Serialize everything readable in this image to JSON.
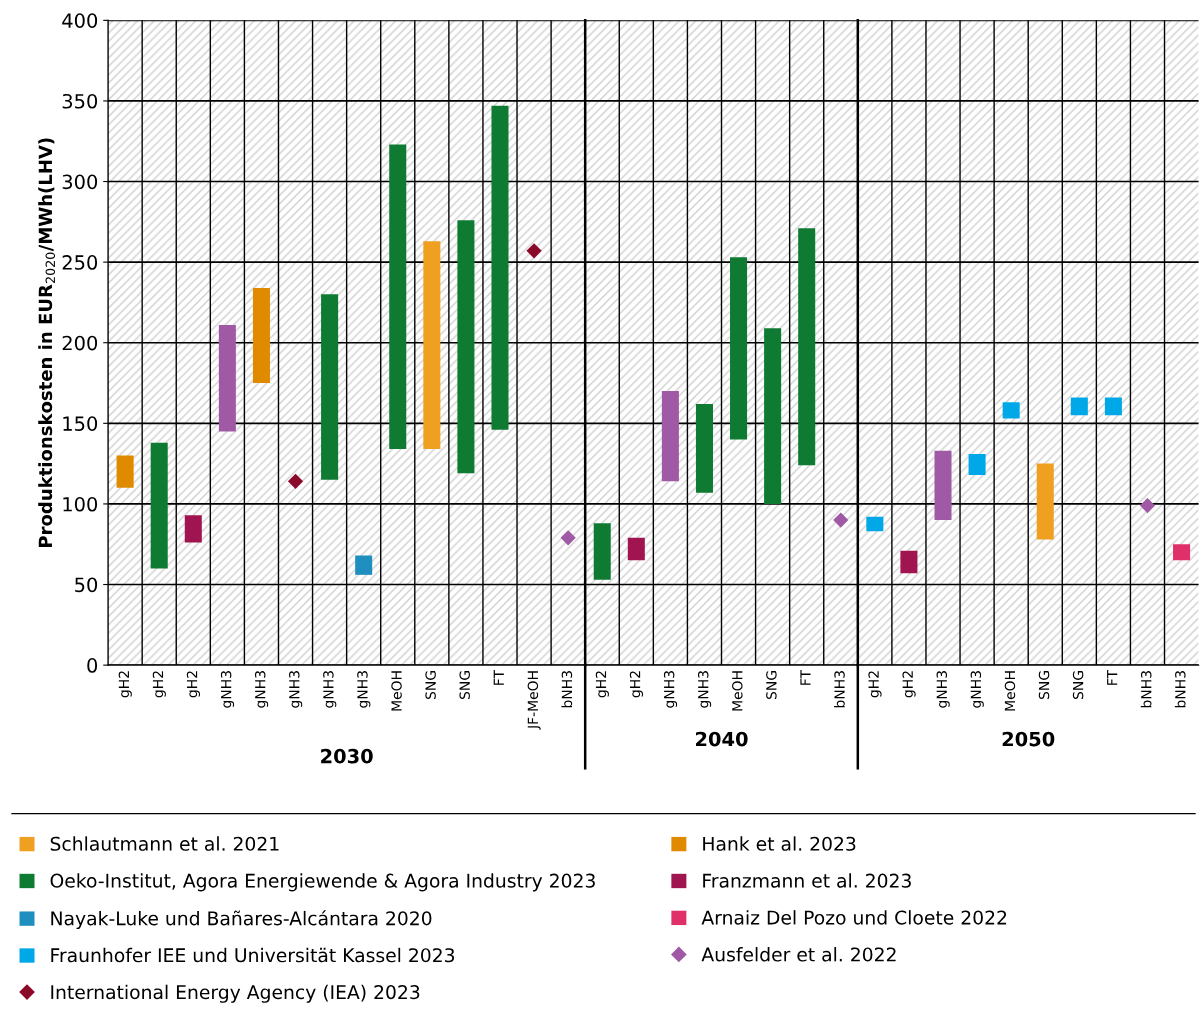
{
  "chart_data": [
    {
      "type": "bar",
      "ylabel": "Produktionskosten in EUR$_{2020}$/MWh(LHV)",
      "xlabel": "2030",
      "categories": [
        "gH2",
        "gH2",
        "gH2",
        "gNH3",
        "gNH3",
        "gNH3",
        "gNH3",
        "gNH3",
        "MeOH",
        "SNG",
        "SNG",
        "FT",
        "JF-MeOH",
        "bNH3"
      ],
      "ylim": [
        0,
        400
      ],
      "yticks": [
        0,
        50,
        100,
        150,
        200,
        250,
        300,
        350,
        400
      ],
      "grid": true,
      "legend": "bottom",
      "series": [
        {
          "name": "Schlautmann et al. 2021",
          "color": "#f0a020",
          "base": [
            null,
            null,
            null,
            null,
            null,
            null,
            null,
            null,
            null,
            134,
            null,
            null,
            null,
            null
          ],
          "values": [
            null,
            null,
            null,
            null,
            null,
            null,
            null,
            null,
            null,
            129,
            null,
            null,
            null,
            null
          ]
        },
        {
          "name": "Hank et al. 2023",
          "color": "#e08a00",
          "base": [
            110,
            null,
            null,
            null,
            175,
            null,
            null,
            null,
            null,
            null,
            null,
            null,
            null,
            null
          ],
          "values": [
            20,
            null,
            null,
            null,
            59,
            null,
            null,
            null,
            null,
            null,
            null,
            null,
            null,
            null
          ]
        },
        {
          "name": "Oeko-Institut, Agora Energiewende & Agora Industry 2023",
          "color": "#0e7a32",
          "base": [
            null,
            60,
            null,
            null,
            null,
            null,
            115,
            null,
            134,
            null,
            119,
            146,
            null,
            null
          ],
          "values": [
            null,
            78,
            null,
            null,
            null,
            null,
            115,
            null,
            189,
            null,
            157,
            201,
            null,
            null
          ]
        },
        {
          "name": "Franzmann et al. 2023",
          "color": "#a0144f",
          "base": [
            null,
            null,
            76,
            null,
            null,
            null,
            null,
            null,
            null,
            null,
            null,
            null,
            null,
            null
          ],
          "values": [
            null,
            null,
            17,
            null,
            null,
            null,
            null,
            null,
            null,
            null,
            null,
            null,
            null,
            null
          ]
        },
        {
          "name": "Nayak-Luke und Bañares-Alcántara 2020",
          "color": "#1f8fc0",
          "base": [
            null,
            null,
            null,
            null,
            null,
            null,
            null,
            56,
            null,
            null,
            null,
            null,
            null,
            null
          ],
          "values": [
            null,
            null,
            null,
            null,
            null,
            null,
            null,
            12,
            null,
            null,
            null,
            null,
            null,
            null
          ]
        },
        {
          "name": "Arnaiz Del Pozo und Cloete 2022",
          "color": "#e0306a",
          "base": [
            null,
            null,
            null,
            null,
            null,
            null,
            null,
            null,
            null,
            null,
            null,
            null,
            null,
            null
          ],
          "values": [
            null,
            null,
            null,
            null,
            null,
            null,
            null,
            null,
            null,
            null,
            null,
            null,
            null,
            null
          ]
        },
        {
          "name": "Fraunhofer IEE und Universität Kassel 2023",
          "color": "#00a8e8",
          "base": [
            null,
            null,
            null,
            null,
            null,
            null,
            null,
            null,
            null,
            null,
            null,
            null,
            null,
            null
          ],
          "values": [
            null,
            null,
            null,
            null,
            null,
            null,
            null,
            null,
            null,
            null,
            null,
            null,
            null,
            null
          ]
        },
        {
          "name": "Ausfelder et al. 2022",
          "type": "scatter",
          "marker": "diamond",
          "color": "#a05aa5",
          "values": [
            null,
            null,
            null,
            null,
            null,
            null,
            null,
            null,
            null,
            null,
            null,
            null,
            null,
            79
          ]
        },
        {
          "name": "International Energy Agency (IEA) 2023",
          "type": "scatter",
          "marker": "diamond",
          "color": "#8b0a2a",
          "values": [
            null,
            null,
            null,
            null,
            null,
            114,
            null,
            null,
            null,
            null,
            null,
            null,
            257,
            null
          ]
        },
        {
          "color": "#a05aa5",
          "base": [
            null,
            null,
            null,
            145,
            null,
            null,
            null,
            null,
            null,
            null,
            null,
            null,
            null,
            null
          ],
          "values": [
            null,
            null,
            null,
            66,
            null,
            null,
            null,
            null,
            null,
            null,
            null,
            null,
            null,
            null
          ]
        }
      ]
    },
    {
      "type": "bar",
      "xlabel": "2040",
      "tick_labels": "x",
      "categories": [
        "gH2",
        "gH2",
        "gNH3",
        "gNH3",
        "MeOH",
        "SNG",
        "FT",
        "bNH3"
      ],
      "ylim": [
        0,
        400
      ],
      "yticks": [
        0,
        50,
        100,
        150,
        200,
        250,
        300,
        350,
        400
      ],
      "grid": true,
      "series": [
        {
          "color": "#0e7a32",
          "base": [
            53,
            null,
            null,
            107,
            140,
            100,
            124,
            null
          ],
          "values": [
            35,
            null,
            null,
            55,
            113,
            109,
            147,
            null
          ]
        },
        {
          "color": "#a0144f",
          "base": [
            null,
            65,
            null,
            null,
            null,
            null,
            null,
            null
          ],
          "values": [
            null,
            14,
            null,
            null,
            null,
            null,
            null,
            null
          ]
        },
        {
          "color": "#a05aa5",
          "base": [
            null,
            null,
            114,
            null,
            null,
            null,
            null,
            null
          ],
          "values": [
            null,
            null,
            56,
            null,
            null,
            null,
            null,
            null
          ]
        },
        {
          "type": "scatter",
          "marker": "diamond",
          "color": "#a05aa5",
          "values": [
            null,
            null,
            null,
            null,
            null,
            null,
            null,
            90
          ]
        }
      ]
    },
    {
      "type": "bar",
      "xlabel": "2050",
      "tick_labels": "x",
      "categories": [
        "gH2",
        "gH2",
        "gNH3",
        "gNH3",
        "MeOH",
        "SNG",
        "SNG",
        "FT",
        "bNH3",
        "bNH3"
      ],
      "ylim": [
        0,
        400
      ],
      "yticks": [
        0,
        50,
        100,
        150,
        200,
        250,
        300,
        350,
        400
      ],
      "grid": true,
      "series": [
        {
          "color": "#00a8e8",
          "base": [
            83,
            null,
            null,
            118,
            153,
            null,
            155,
            155,
            null,
            null
          ],
          "values": [
            9,
            null,
            null,
            13,
            10,
            null,
            11,
            11,
            null,
            null
          ]
        },
        {
          "color": "#a0144f",
          "base": [
            null,
            57,
            null,
            null,
            null,
            null,
            null,
            null,
            null,
            null
          ],
          "values": [
            null,
            14,
            null,
            null,
            null,
            null,
            null,
            null,
            null,
            null
          ]
        },
        {
          "color": "#a05aa5",
          "base": [
            null,
            null,
            90,
            null,
            null,
            null,
            null,
            null,
            null,
            null
          ],
          "values": [
            null,
            null,
            43,
            null,
            null,
            null,
            null,
            null,
            null,
            null
          ]
        },
        {
          "color": "#f0a020",
          "base": [
            null,
            null,
            null,
            null,
            null,
            78,
            null,
            null,
            null,
            null
          ],
          "values": [
            null,
            null,
            null,
            null,
            null,
            47,
            null,
            null,
            null,
            null
          ]
        },
        {
          "type": "scatter",
          "marker": "diamond",
          "color": "#a05aa5",
          "values": [
            null,
            null,
            null,
            null,
            null,
            null,
            null,
            null,
            99,
            null
          ]
        },
        {
          "color": "#e0306a",
          "base": [
            null,
            null,
            null,
            null,
            null,
            null,
            null,
            null,
            null,
            65
          ],
          "values": [
            null,
            null,
            null,
            null,
            null,
            null,
            null,
            null,
            null,
            10
          ]
        }
      ]
    }
  ]
}
